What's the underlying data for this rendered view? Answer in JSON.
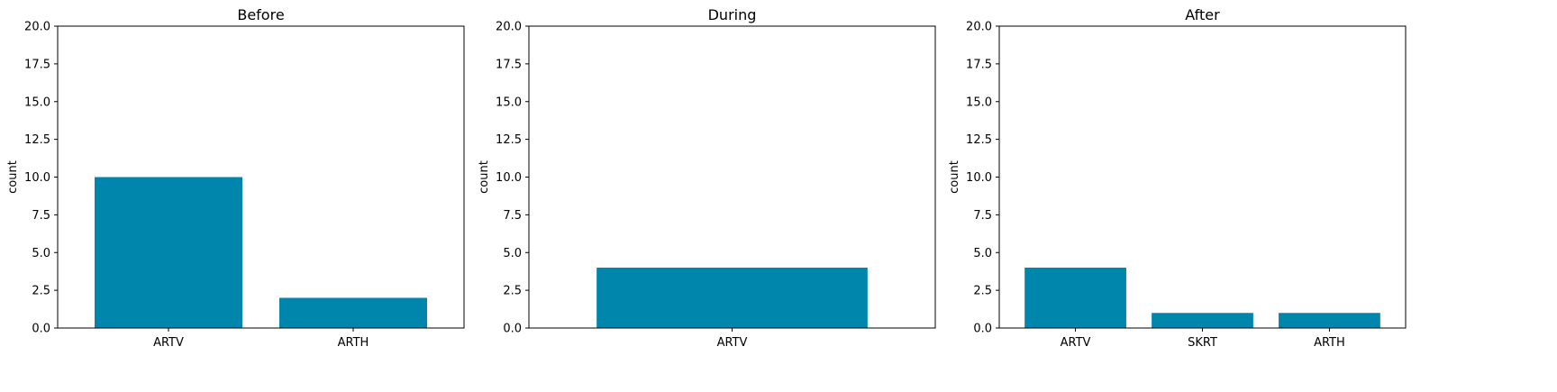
{
  "bar_color": "#0086ad",
  "chart_data": [
    {
      "type": "bar",
      "title": "Before",
      "xlabel": "",
      "ylabel": "count",
      "ylim": [
        0,
        20
      ],
      "yticks": [
        "0.0",
        "2.5",
        "5.0",
        "7.5",
        "10.0",
        "12.5",
        "15.0",
        "17.5",
        "20.0"
      ],
      "categories": [
        "ARTV",
        "ARTH"
      ],
      "values": [
        10,
        2
      ]
    },
    {
      "type": "bar",
      "title": "During",
      "xlabel": "",
      "ylabel": "count",
      "ylim": [
        0,
        20
      ],
      "yticks": [
        "0.0",
        "2.5",
        "5.0",
        "7.5",
        "10.0",
        "12.5",
        "15.0",
        "17.5",
        "20.0"
      ],
      "categories": [
        "ARTV"
      ],
      "values": [
        4
      ]
    },
    {
      "type": "bar",
      "title": "After",
      "xlabel": "",
      "ylabel": "count",
      "ylim": [
        0,
        20
      ],
      "yticks": [
        "0.0",
        "2.5",
        "5.0",
        "7.5",
        "10.0",
        "12.5",
        "15.0",
        "17.5",
        "20.0"
      ],
      "categories": [
        "ARTV",
        "SKRT",
        "ARTH"
      ],
      "values": [
        4,
        1,
        1
      ]
    }
  ]
}
